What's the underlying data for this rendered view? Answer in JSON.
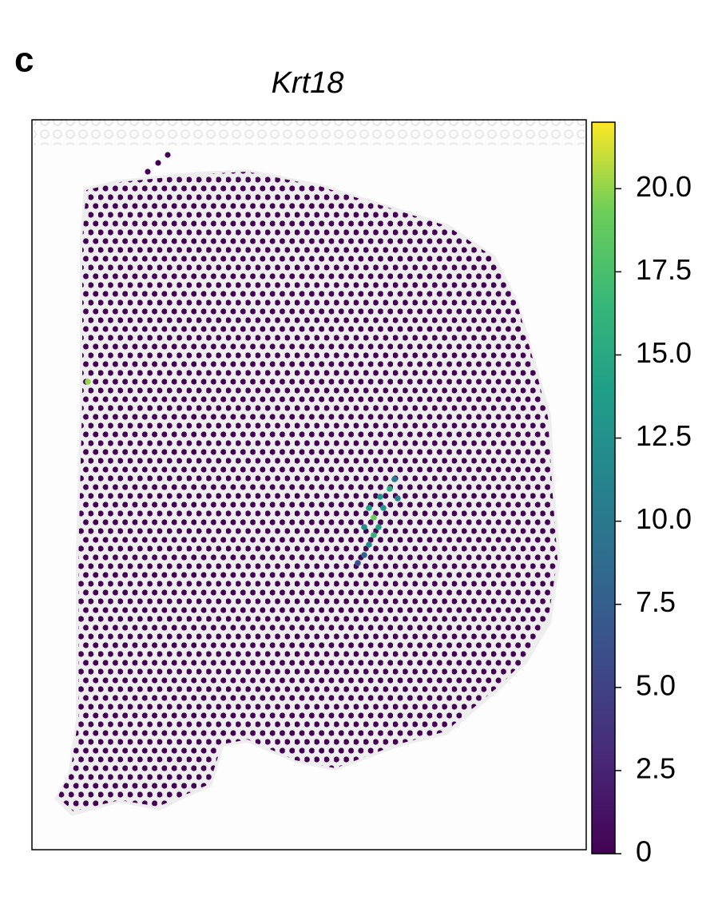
{
  "panel_label": "c",
  "chart_data": {
    "type": "spatial",
    "title": "Krt18",
    "colormap": "viridis",
    "clim": [
      0,
      22
    ],
    "cticks": [
      0,
      2.5,
      {
        "value": 5,
        "label": "5.0"
      },
      7.5,
      {
        "value": 10,
        "label": "10.0"
      },
      12.5,
      {
        "value": 15,
        "label": "15.0"
      },
      17.5,
      {
        "value": 20,
        "label": "20.0"
      }
    ],
    "xlim": [
      0,
      694
    ],
    "ylim": [
      914,
      0
    ],
    "x": [
      70,
      428,
      448,
      436,
      422,
      440,
      434,
      416,
      422,
      454,
      458,
      428,
      416,
      408
    ],
    "y": [
      328,
      498,
      462,
      472,
      486,
      486,
      510,
      510,
      532,
      450,
      474,
      520,
      545,
      555
    ],
    "values": [
      20,
      19,
      15,
      13,
      14,
      13,
      14,
      12,
      12,
      10,
      11,
      16,
      8,
      6
    ]
  }
}
